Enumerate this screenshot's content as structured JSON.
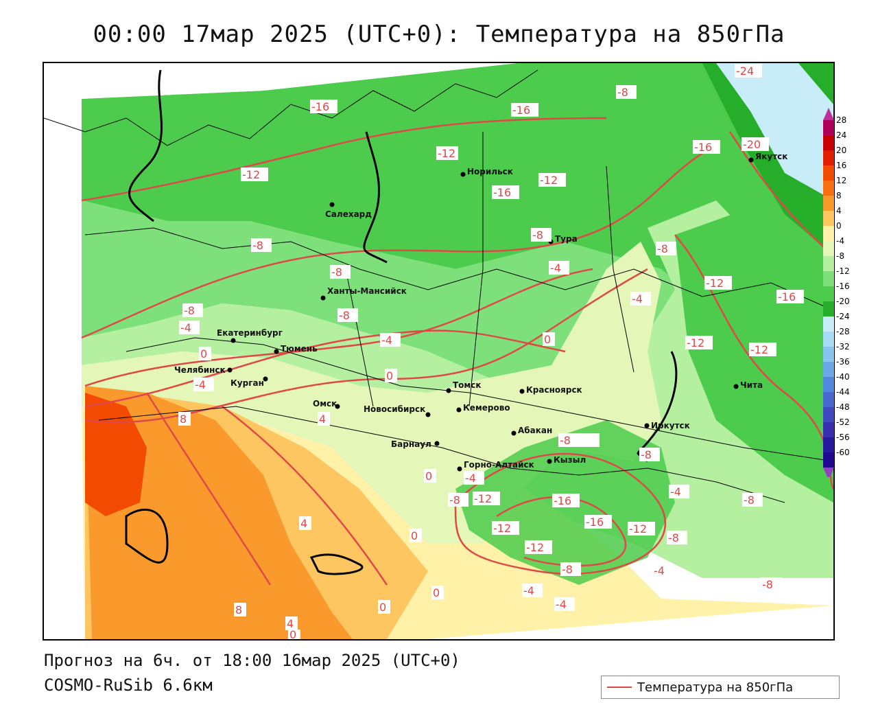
{
  "title": "00:00 17мар 2025 (UTC+0): Температура на 850гПа",
  "footer": {
    "forecast": "Прогноз на 6ч. от 18:00 16мар 2025 (UTC+0)",
    "model": "COSMO-RuSib 6.6км"
  },
  "legend": {
    "label": "Температура на 850гПа",
    "line_color": "#e04848"
  },
  "colorbar": {
    "levels": [
      "28",
      "24",
      "20",
      "16",
      "12",
      "8",
      "4",
      "0",
      "-4",
      "-8",
      "-12",
      "-16",
      "-20",
      "-24",
      "-28",
      "-32",
      "-36",
      "-40",
      "-44",
      "-48",
      "-52",
      "-56",
      "-60"
    ],
    "colors": [
      "#b0005a",
      "#c80000",
      "#e01e00",
      "#f24a00",
      "#f86e10",
      "#fb9a2c",
      "#fec660",
      "#fff1a8",
      "#e4f7b8",
      "#b4f0a0",
      "#7ee07a",
      "#4ccb4c",
      "#26ad2a",
      "#c8ecf8",
      "#a8dcf6",
      "#88c4f0",
      "#6aa8e8",
      "#5088de",
      "#4868d0",
      "#4048c0",
      "#3830b0",
      "#2818a0",
      "#200890"
    ],
    "arrow_top": "#c0309a",
    "arrow_bottom": "#9040c0"
  },
  "cities": [
    {
      "name": "Норильск"
    },
    {
      "name": "Салехард"
    },
    {
      "name": "Тура"
    },
    {
      "name": "Якутск"
    },
    {
      "name": "Ханты-Мансийск"
    },
    {
      "name": "Екатеринбург"
    },
    {
      "name": "Тюмень"
    },
    {
      "name": "Челябинск"
    },
    {
      "name": "Курган"
    },
    {
      "name": "Омск"
    },
    {
      "name": "Новосибирск"
    },
    {
      "name": "Томск"
    },
    {
      "name": "Кемерово"
    },
    {
      "name": "Красноярск"
    },
    {
      "name": "Абакан"
    },
    {
      "name": "Барнаул"
    },
    {
      "name": "Горно-Алтайск"
    },
    {
      "name": "Кызыл"
    },
    {
      "name": "Иркутск"
    },
    {
      "name": "Чита"
    }
  ],
  "isotherm_labels": [
    "-16",
    "-16",
    "-12",
    "-12",
    "-16",
    "-12",
    "-8",
    "-20",
    "-24",
    "-16",
    "-8",
    "-8",
    "-8",
    "-8",
    "-4",
    "-8",
    "-8",
    "-4",
    "-12",
    "-16",
    "-4",
    "0",
    "-12",
    "-12",
    "0",
    "-4",
    "0",
    "-4",
    "4",
    "8",
    "0",
    "-8",
    "-12",
    "-8",
    "-4",
    "-8",
    "-16",
    "-16",
    "-12",
    "-12",
    "-12",
    "-8",
    "-8",
    "-4",
    "-8",
    "-4",
    "4",
    "0",
    "0",
    "8",
    "4",
    "0",
    "-4",
    "-8",
    "-4",
    "0"
  ]
}
